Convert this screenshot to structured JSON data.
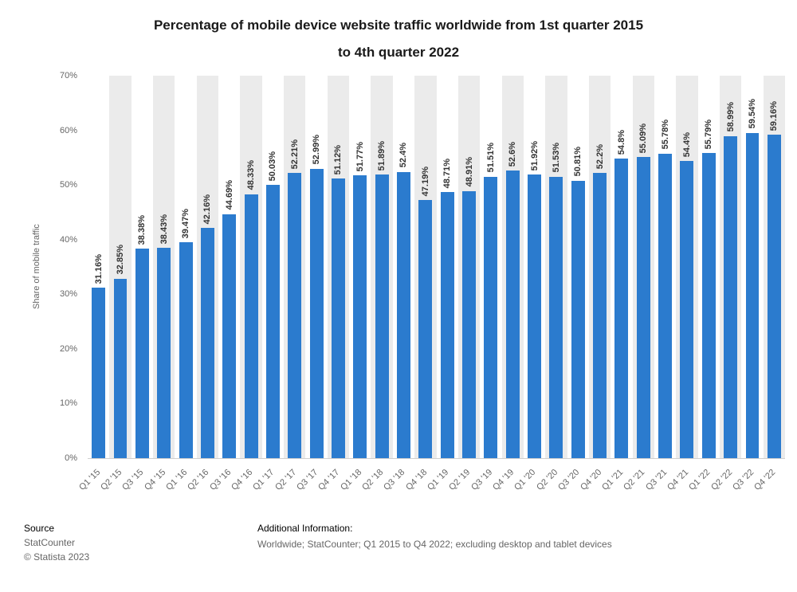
{
  "chart_data": {
    "type": "bar",
    "title": "Percentage of mobile device website traffic worldwide from 1st quarter 2015 to 4th quarter 2022",
    "title_line1": "Percentage of mobile device website traffic worldwide from 1st quarter 2015",
    "title_line2": "to 4th quarter 2022",
    "xlabel": "",
    "ylabel": "Share of mobile traffic",
    "ylim": [
      0,
      70
    ],
    "yticks": [
      "0%",
      "10%",
      "20%",
      "30%",
      "40%",
      "50%",
      "60%",
      "70%"
    ],
    "grid": "vertical-stripes",
    "legend": "none",
    "bar_color": "#2b7bce",
    "stripe_color": "#ebebeb",
    "categories": [
      "Q1 '15",
      "Q2 '15",
      "Q3 '15",
      "Q4 '15",
      "Q1 '16",
      "Q2 '16",
      "Q3 '16",
      "Q4 '16",
      "Q1 '17",
      "Q2 '17",
      "Q3 '17",
      "Q4 '17",
      "Q1 '18",
      "Q2 '18",
      "Q3 '18",
      "Q4 '18",
      "Q1 '19",
      "Q2 '19",
      "Q3 '19",
      "Q4 '19",
      "Q1 '20",
      "Q2 '20",
      "Q3 '20",
      "Q4 '20",
      "Q1 '21",
      "Q2 '21",
      "Q3 '21",
      "Q4 '21",
      "Q1 '22",
      "Q2 '22",
      "Q3 '22",
      "Q4 '22"
    ],
    "values": [
      31.16,
      32.85,
      38.38,
      38.43,
      39.47,
      42.16,
      44.69,
      48.33,
      50.03,
      52.21,
      52.99,
      51.12,
      51.77,
      51.89,
      52.4,
      47.19,
      48.71,
      48.91,
      51.51,
      52.6,
      51.92,
      51.53,
      50.81,
      52.2,
      54.8,
      55.09,
      55.78,
      54.4,
      55.79,
      58.99,
      59.54,
      59.16
    ]
  },
  "footer": {
    "source_label": "Source",
    "source_name": "StatCounter",
    "copyright": "© Statista 2023",
    "additional_info_label": "Additional Information:",
    "additional_info": "Worldwide; StatCounter; Q1 2015 to Q4 2022; excluding desktop and tablet devices"
  }
}
